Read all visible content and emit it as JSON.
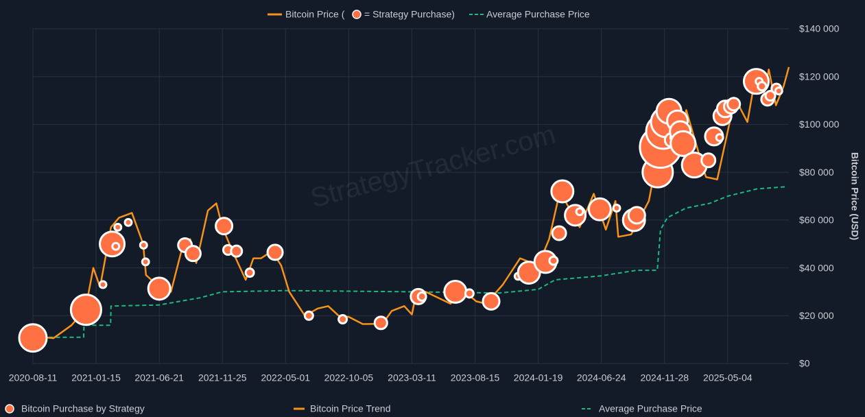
{
  "chart_data": {
    "type": "line",
    "watermark": "StrategyTracker.com",
    "top_legend_text": [
      "Bitcoin Price (",
      "= Strategy Purchase)"
    ],
    "y_label": "Bitcoin Price (USD)",
    "xlim": [
      "2020-08-11",
      "2025-10-03"
    ],
    "xticks": [
      "2020-08-11",
      "2021-01-15",
      "2021-06-21",
      "2021-11-25",
      "2022-05-01",
      "2022-10-05",
      "2023-03-11",
      "2023-08-15",
      "2024-01-19",
      "2024-06-24",
      "2024-11-28",
      "2025-05-04"
    ],
    "ylim": [
      0,
      140000
    ],
    "yticks": [
      {
        "value": 0,
        "label": "$0"
      },
      {
        "value": 20000,
        "label": "$20 000"
      },
      {
        "value": 40000,
        "label": "$40 000"
      },
      {
        "value": 60000,
        "label": "$60 000"
      },
      {
        "value": 80000,
        "label": "$80 000"
      },
      {
        "value": 100000,
        "label": "$100 000"
      },
      {
        "value": 120000,
        "label": "$120 000"
      },
      {
        "value": 140000,
        "label": "$140 000"
      }
    ],
    "grid": true,
    "series": [
      {
        "name": "Bitcoin Price Trend",
        "color": "#f7931a",
        "style": "solid",
        "x": [
          "2020-08-11",
          "2020-10-01",
          "2020-11-15",
          "2020-12-20",
          "2021-01-08",
          "2021-01-25",
          "2021-02-21",
          "2021-03-13",
          "2021-04-14",
          "2021-05-12",
          "2021-05-19",
          "2021-06-21",
          "2021-07-20",
          "2021-08-15",
          "2021-09-06",
          "2021-09-21",
          "2021-10-20",
          "2021-11-10",
          "2021-11-25",
          "2021-12-20",
          "2022-01-22",
          "2022-02-10",
          "2022-03-01",
          "2022-03-28",
          "2022-04-20",
          "2022-05-10",
          "2022-06-18",
          "2022-07-20",
          "2022-08-15",
          "2022-09-10",
          "2022-10-05",
          "2022-11-09",
          "2022-12-28",
          "2023-01-20",
          "2023-02-20",
          "2023-03-11",
          "2023-03-20",
          "2023-04-14",
          "2023-06-15",
          "2023-07-14",
          "2023-08-18",
          "2023-09-11",
          "2023-10-23",
          "2023-12-05",
          "2024-01-19",
          "2024-02-15",
          "2024-03-13",
          "2024-05-01",
          "2024-06-05",
          "2024-07-05",
          "2024-07-29",
          "2024-08-05",
          "2024-09-06",
          "2024-10-20",
          "2024-11-12",
          "2024-12-05",
          "2024-12-17",
          "2025-01-10",
          "2025-01-21",
          "2025-02-28",
          "2025-03-11",
          "2025-04-08",
          "2025-05-22",
          "2025-06-22",
          "2025-07-14",
          "2025-08-03",
          "2025-08-14",
          "2025-09-01",
          "2025-09-20",
          "2025-10-03"
        ],
        "values": [
          11500,
          10600,
          16000,
          23000,
          40000,
          32000,
          57000,
          61000,
          63000,
          50000,
          37000,
          32000,
          30000,
          47000,
          52000,
          42000,
          64000,
          67000,
          57000,
          47000,
          35000,
          44000,
          44000,
          47000,
          41000,
          30000,
          20000,
          23000,
          24000,
          20000,
          19500,
          16500,
          16600,
          22000,
          24000,
          20500,
          28000,
          30000,
          25000,
          31000,
          26000,
          25000,
          33000,
          44000,
          41000,
          52000,
          72000,
          57000,
          71000,
          56000,
          68000,
          53000,
          54000,
          68000,
          88000,
          100000,
          106000,
          94000,
          106000,
          84000,
          78000,
          77000,
          111000,
          101000,
          122000,
          113000,
          123000,
          108000,
          116000,
          124000
        ]
      },
      {
        "name": "Average Purchase Price",
        "color": "#1db981",
        "style": "dashed",
        "x": [
          "2020-09-20",
          "2020-12-15",
          "2020-12-16",
          "2021-02-20",
          "2021-02-21",
          "2021-06-21",
          "2021-10-01",
          "2021-11-25",
          "2022-05-01",
          "2023-03-11",
          "2023-10-15",
          "2024-01-19",
          "2024-03-01",
          "2024-06-24",
          "2024-09-20",
          "2024-11-10",
          "2024-11-18",
          "2024-12-05",
          "2025-01-20",
          "2025-03-20",
          "2025-05-04",
          "2025-07-15",
          "2025-09-30"
        ],
        "values": [
          11000,
          11000,
          16000,
          16000,
          24000,
          24500,
          27500,
          30000,
          30500,
          30000,
          29500,
          31000,
          35000,
          36700,
          39000,
          39000,
          56000,
          61000,
          65000,
          67000,
          70000,
          73000,
          74000
        ]
      }
    ],
    "bubbles": {
      "name": "Bitcoin Purchase by Strategy",
      "color": "#ff7043",
      "x": [
        "2020-08-11",
        "2020-12-21",
        "2021-02-01",
        "2021-02-24",
        "2021-03-05",
        "2021-03-10",
        "2021-04-05",
        "2021-05-13",
        "2021-05-18",
        "2021-06-21",
        "2021-08-24",
        "2021-09-13",
        "2021-11-29",
        "2021-12-09",
        "2021-12-30",
        "2022-02-01",
        "2022-04-05",
        "2022-06-28",
        "2022-09-20",
        "2022-12-24",
        "2023-03-27",
        "2023-04-05",
        "2023-06-27",
        "2023-08-01",
        "2023-09-24",
        "2023-11-30",
        "2023-12-27",
        "2024-02-06",
        "2024-02-26",
        "2024-03-11",
        "2024-03-19",
        "2024-04-20",
        "2024-05-01",
        "2024-06-20",
        "2024-08-01",
        "2024-09-13",
        "2024-09-20",
        "2024-11-11",
        "2024-11-18",
        "2024-11-25",
        "2024-12-02",
        "2024-12-09",
        "2024-12-16",
        "2024-12-23",
        "2024-12-30",
        "2025-01-06",
        "2025-01-13",
        "2025-02-10",
        "2025-03-17",
        "2025-03-31",
        "2025-04-14",
        "2025-04-21",
        "2025-04-28",
        "2025-05-12",
        "2025-05-19",
        "2025-07-14",
        "2025-07-21",
        "2025-07-28",
        "2025-08-11",
        "2025-08-18",
        "2025-09-02",
        "2025-09-08"
      ],
      "values": [
        10700,
        22500,
        33000,
        50000,
        49000,
        57000,
        59000,
        49500,
        42500,
        31300,
        49500,
        46000,
        57500,
        47500,
        47000,
        38000,
        46500,
        20000,
        18500,
        17000,
        28000,
        28000,
        30000,
        29300,
        26000,
        36500,
        38000,
        42500,
        43000,
        54500,
        72000,
        62000,
        63500,
        64500,
        65000,
        60000,
        62000,
        80000,
        90500,
        97000,
        101000,
        105500,
        93500,
        94500,
        101500,
        97000,
        92000,
        83000,
        85000,
        95000,
        94500,
        103500,
        106500,
        107500,
        108500,
        118000,
        118000,
        116000,
        110500,
        112000,
        115000,
        114000
      ],
      "sizes": [
        24400,
        29600,
        1500,
        19800,
        1500,
        1500,
        1500,
        1500,
        1500,
        15600,
        6100,
        7400,
        8800,
        3000,
        3900,
        2200,
        7400,
        2200,
        2200,
        5000,
        7400,
        2200,
        15600,
        2200,
        8800,
        1500,
        15600,
        15600,
        2200,
        6100,
        15600,
        13750,
        1500,
        15600,
        1500,
        15600,
        8800,
        29600,
        55000,
        38200,
        29600,
        19800,
        6100,
        2200,
        13750,
        13750,
        19800,
        19800,
        6100,
        10300,
        1500,
        10300,
        8800,
        6100,
        5000,
        19800,
        1500,
        2200,
        5000,
        3000,
        3000,
        1500
      ]
    }
  }
}
